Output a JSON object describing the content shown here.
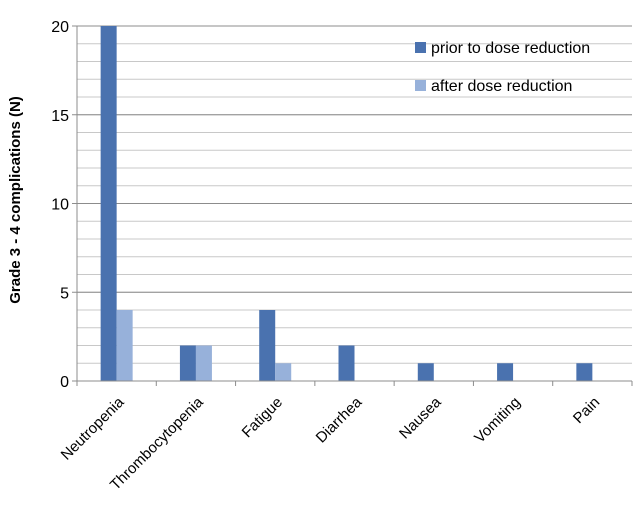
{
  "chart_data": {
    "type": "bar",
    "title": "",
    "xlabel": "",
    "ylabel": "Grade 3 - 4 complications  (N)",
    "ylim": [
      0,
      20
    ],
    "yticks": [
      0,
      5,
      10,
      15,
      20
    ],
    "minor_grid_step": 1,
    "grid": true,
    "legend_position": "top-right",
    "categories": [
      "Neutropenia",
      "Thrombocytopenia",
      "Fatigue",
      "Diarrhea",
      "Nausea",
      "Vomiting",
      "Pain"
    ],
    "series": [
      {
        "name": "prior to dose reduction",
        "color": "#4A72AF",
        "values": [
          20,
          2,
          4,
          2,
          1,
          1,
          1
        ]
      },
      {
        "name": "after dose reduction",
        "color": "#97B1DA",
        "values": [
          4,
          2,
          1,
          0,
          0,
          0,
          0
        ]
      }
    ]
  }
}
